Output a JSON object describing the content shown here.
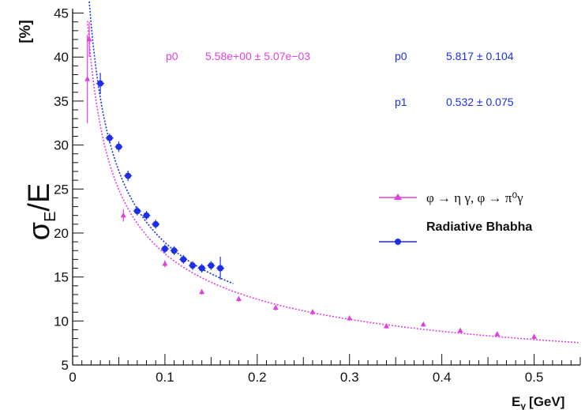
{
  "chart_data": {
    "type": "scatter",
    "xlabel": "E",
    "xlabel_sub": "γ",
    "xlabel_unit": "[GeV]",
    "ylabel": "σ",
    "ylabel_sub": "E",
    "ylabel_tail": "/E",
    "ylabel_unit": "[%]",
    "xlim": [
      0,
      0.55
    ],
    "ylim": [
      5,
      45.5
    ],
    "xticks": [
      "0",
      "0.1",
      "0.2",
      "0.3",
      "0.4",
      "0.5"
    ],
    "yticks": [
      "5",
      "10",
      "15",
      "20",
      "25",
      "30",
      "35",
      "40",
      "45"
    ],
    "grid": false,
    "legend_position": "right",
    "fit_params": {
      "magenta": {
        "name": "p0",
        "value": "5.58e+00 ± 5.07e−03",
        "color": "#e040e0"
      },
      "blue_p0": {
        "name": "p0",
        "value": "5.817 ± 0.104",
        "color": "#1a2fe6"
      },
      "blue_p1": {
        "name": "p1",
        "value": "0.532 ± 0.075",
        "color": "#1a2fe6"
      }
    },
    "series": [
      {
        "name": "φ → η γ, φ → π⁰γ",
        "color": "#e040e0",
        "marker": "triangle",
        "x": [
          0.016,
          0.018,
          0.055,
          0.1,
          0.14,
          0.18,
          0.22,
          0.26,
          0.3,
          0.34,
          0.38,
          0.42,
          0.46,
          0.5
        ],
        "y": [
          37.5,
          42.0,
          22.0,
          16.5,
          13.3,
          12.5,
          11.5,
          11.0,
          10.3,
          9.4,
          9.6,
          8.9,
          8.5,
          8.2
        ],
        "err": [
          5.0,
          2.0,
          0.7,
          0.4,
          0.3,
          0.3,
          0.3,
          0.3,
          0.25,
          0.25,
          0.25,
          0.25,
          0.25,
          0.25
        ]
      },
      {
        "name": "Radiative Bhabha",
        "color": "#1a2fe6",
        "marker": "circle",
        "x": [
          0.03,
          0.04,
          0.05,
          0.06,
          0.07,
          0.08,
          0.09,
          0.1,
          0.11,
          0.12,
          0.13,
          0.14,
          0.15,
          0.16
        ],
        "y": [
          37.0,
          30.8,
          29.8,
          26.5,
          22.5,
          22.0,
          21.0,
          18.2,
          18.0,
          17.0,
          16.3,
          16.0,
          16.3,
          16.0
        ],
        "err": [
          1.2,
          0.5,
          0.6,
          0.6,
          0.5,
          0.5,
          0.5,
          0.5,
          0.5,
          0.5,
          0.5,
          0.5,
          0.5,
          1.3
        ]
      }
    ]
  }
}
